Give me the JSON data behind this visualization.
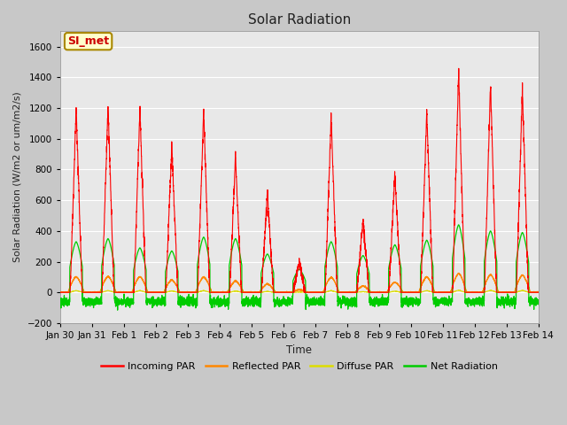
{
  "title": "Solar Radiation",
  "xlabel": "Time",
  "ylabel": "Solar Radiation (W/m2 or um/m2/s)",
  "ylim": [
    -200,
    1700
  ],
  "yticks": [
    -200,
    0,
    200,
    400,
    600,
    800,
    1000,
    1200,
    1400,
    1600
  ],
  "annotation_text": "SI_met",
  "annotation_color": "#cc0000",
  "annotation_bg": "#ffffcc",
  "annotation_border": "#aa8800",
  "colors": {
    "incoming_par": "#ff0000",
    "reflected_par": "#ff8800",
    "diffuse_par": "#dddd00",
    "net_radiation": "#00cc00"
  },
  "legend_labels": [
    "Incoming PAR",
    "Reflected PAR",
    "Diffuse PAR",
    "Net Radiation"
  ],
  "fig_bg": "#c8c8c8",
  "axes_bg": "#e8e8e8",
  "grid_color": "#ffffff",
  "x_tick_labels": [
    "Jan 30",
    "Jan 31",
    "Feb 1",
    "Feb 2",
    "Feb 3",
    "Feb 4",
    "Feb 5",
    "Feb 6",
    "Feb 7",
    "Feb 8",
    "Feb 9",
    "Feb 10",
    "Feb 11",
    "Feb 12",
    "Feb 13",
    "Feb 14"
  ],
  "day_peaks": [
    1200,
    1220,
    1200,
    950,
    1180,
    880,
    650,
    200,
    1150,
    480,
    780,
    1180,
    1450,
    1360,
    1320
  ],
  "net_peaks": [
    330,
    350,
    290,
    270,
    360,
    350,
    250,
    150,
    330,
    240,
    310,
    340,
    440,
    400,
    390
  ]
}
